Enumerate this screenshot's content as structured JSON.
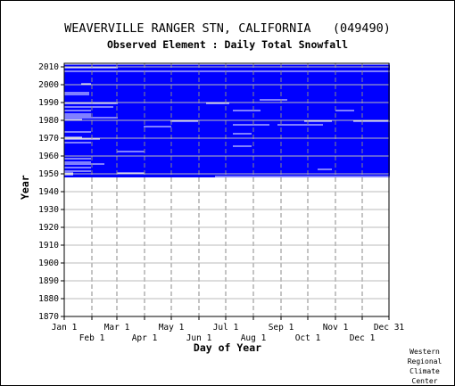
{
  "chart_data": {
    "type": "heatmap",
    "title": "WEAVERVILLE RANGER STN, CALIFORNIA   (049490)",
    "subtitle": "Observed Element : Daily Total Snowfall",
    "xlabel": "Day of Year",
    "ylabel": "Year",
    "xlim": [
      1,
      365
    ],
    "ylim": [
      1870,
      2012
    ],
    "x_ticks_top": [
      "Jan 1",
      "Mar 1",
      "May 1",
      "Jul 1",
      "Sep 1",
      "Nov 1",
      "Dec 31"
    ],
    "x_ticks_bottom": [
      "Feb 1",
      "Apr 1",
      "Jun 1",
      "Aug 1",
      "Oct 1",
      "Dec 1"
    ],
    "y_ticks": [
      1870,
      1880,
      1890,
      1900,
      1910,
      1920,
      1930,
      1940,
      1950,
      1960,
      1970,
      1980,
      1990,
      2000,
      2010
    ],
    "grid": true,
    "data_color": "#0000ff",
    "missing_color": "#ffffff",
    "coverage_years": [
      1948,
      2011
    ],
    "missing_segments": [
      {
        "year": 2011,
        "from": 1,
        "to": 365
      },
      {
        "year": 2009,
        "from": 1,
        "to": 60
      },
      {
        "year": 2007,
        "from": 1,
        "to": 365
      },
      {
        "year": 2000,
        "from": 20,
        "to": 30
      },
      {
        "year": 1995,
        "from": 1,
        "to": 28
      },
      {
        "year": 1994,
        "from": 1,
        "to": 28
      },
      {
        "year": 1991,
        "from": 220,
        "to": 250
      },
      {
        "year": 1989,
        "from": 1,
        "to": 60
      },
      {
        "year": 1989,
        "from": 160,
        "to": 185
      },
      {
        "year": 1987,
        "from": 1,
        "to": 55
      },
      {
        "year": 1985,
        "from": 1,
        "to": 30
      },
      {
        "year": 1985,
        "from": 305,
        "to": 325
      },
      {
        "year": 1985,
        "from": 190,
        "to": 220
      },
      {
        "year": 1983,
        "from": 1,
        "to": 30
      },
      {
        "year": 1982,
        "from": 1,
        "to": 30
      },
      {
        "year": 1981,
        "from": 1,
        "to": 60
      },
      {
        "year": 1980,
        "from": 1,
        "to": 20
      },
      {
        "year": 1979,
        "from": 120,
        "to": 150
      },
      {
        "year": 1979,
        "from": 270,
        "to": 300
      },
      {
        "year": 1979,
        "from": 325,
        "to": 365
      },
      {
        "year": 1977,
        "from": 190,
        "to": 230
      },
      {
        "year": 1977,
        "from": 240,
        "to": 290
      },
      {
        "year": 1976,
        "from": 90,
        "to": 120
      },
      {
        "year": 1973,
        "from": 1,
        "to": 30
      },
      {
        "year": 1972,
        "from": 190,
        "to": 210
      },
      {
        "year": 1970,
        "from": 1,
        "to": 20
      },
      {
        "year": 1969,
        "from": 1,
        "to": 40
      },
      {
        "year": 1967,
        "from": 1,
        "to": 30
      },
      {
        "year": 1965,
        "from": 190,
        "to": 210
      },
      {
        "year": 1962,
        "from": 60,
        "to": 90
      },
      {
        "year": 1958,
        "from": 1,
        "to": 30
      },
      {
        "year": 1956,
        "from": 1,
        "to": 30
      },
      {
        "year": 1955,
        "from": 1,
        "to": 45
      },
      {
        "year": 1953,
        "from": 1,
        "to": 30
      },
      {
        "year": 1952,
        "from": 285,
        "to": 300
      },
      {
        "year": 1951,
        "from": 1,
        "to": 30
      },
      {
        "year": 1950,
        "from": 1,
        "to": 10
      },
      {
        "year": 1950,
        "from": 60,
        "to": 90
      },
      {
        "year": 1949,
        "from": 1,
        "to": 10
      },
      {
        "year": 1948,
        "from": 170,
        "to": 365
      }
    ]
  },
  "credit": [
    "Western",
    "Regional",
    "Climate",
    "Center"
  ]
}
